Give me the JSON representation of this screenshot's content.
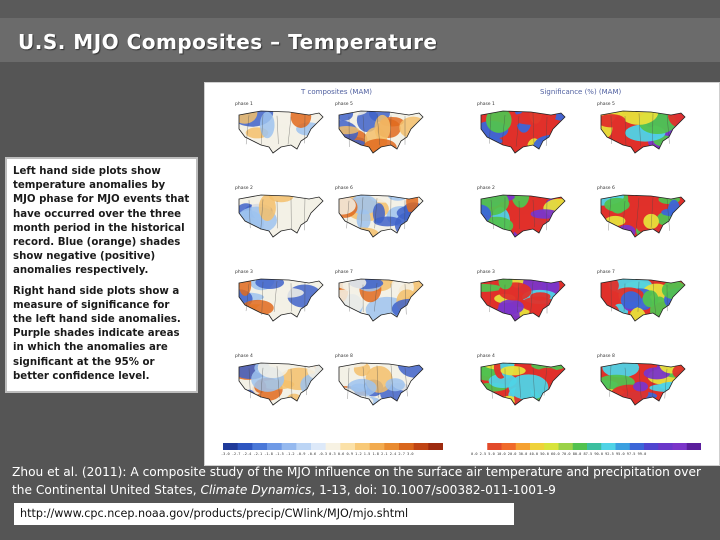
{
  "slide": {
    "title": "U.S. MJO Composites – Temperature"
  },
  "figure": {
    "left_header": "T composites (MAM)",
    "right_header": "Significance (%)  (MAM)",
    "left_panels": [
      {
        "col": "a",
        "label": "phase 1"
      },
      {
        "col": "b",
        "label": "phase 5"
      },
      {
        "col": "a",
        "label": "phase 2"
      },
      {
        "col": "b",
        "label": "phase 6"
      },
      {
        "col": "a",
        "label": "phase 3"
      },
      {
        "col": "b",
        "label": "phase 7"
      },
      {
        "col": "a",
        "label": "phase 4"
      },
      {
        "col": "b",
        "label": "phase 8"
      }
    ],
    "right_panels": [
      {
        "label": "phase 1"
      },
      {
        "label": "phase 5"
      },
      {
        "label": "phase 2"
      },
      {
        "label": "phase 6"
      },
      {
        "label": "phase 3"
      },
      {
        "label": "phase 7"
      },
      {
        "label": "phase 4"
      },
      {
        "label": "phase 8"
      }
    ],
    "left_colorbar_ticks": "-3.0  -2.7  -2.4  -2.1  -1.8  -1.5  -1.2  -0.9  -0.6  -0.3  0.3  0.6  0.9  1.2  1.5  1.8  2.1  2.4  2.7  3.0",
    "right_colorbar_ticks": "0.0  2.5  5.0  10.0  20.0  30.0  40.0  50.0  60.0  70.0  80.0  87.5  90.0  92.5  95.0  97.5  99.0",
    "colors": {
      "cold": "#3f63c9",
      "cool": "#9ec3ef",
      "neutral": "#f3f1e6",
      "warm": "#f3c06b",
      "hot": "#e06a1d",
      "sig_purple": "#7b35c9",
      "sig_blue": "#3b66d8",
      "sig_cyan": "#4fd3e6",
      "sig_green": "#52c24f",
      "sig_yellow": "#e7e03a",
      "sig_red": "#e0302a"
    }
  },
  "notes": {
    "para1": "Left hand side plots show temperature anomalies by MJO phase for MJO events that have occurred over the three month period in the historical record. Blue (orange) shades show negative (positive) anomalies respectively.",
    "para2": "Right hand side plots show a measure of significance for the left hand side anomalies. Purple shades indicate areas in which the anomalies are significant at the 95% or better confidence level."
  },
  "citation": {
    "prefix": "Zhou et al. (2011): A composite study of the MJO influence on the surface air temperature and precipitation over the Continental United States, ",
    "journal": "Climate Dynamics",
    "suffix": ", 1-13, doi: 10.1007/s00382-011-1001-9"
  },
  "link": {
    "url": "http://www.cpc.ncep.noaa.gov/products/precip/CWlink/MJO/mjo.shtml"
  }
}
